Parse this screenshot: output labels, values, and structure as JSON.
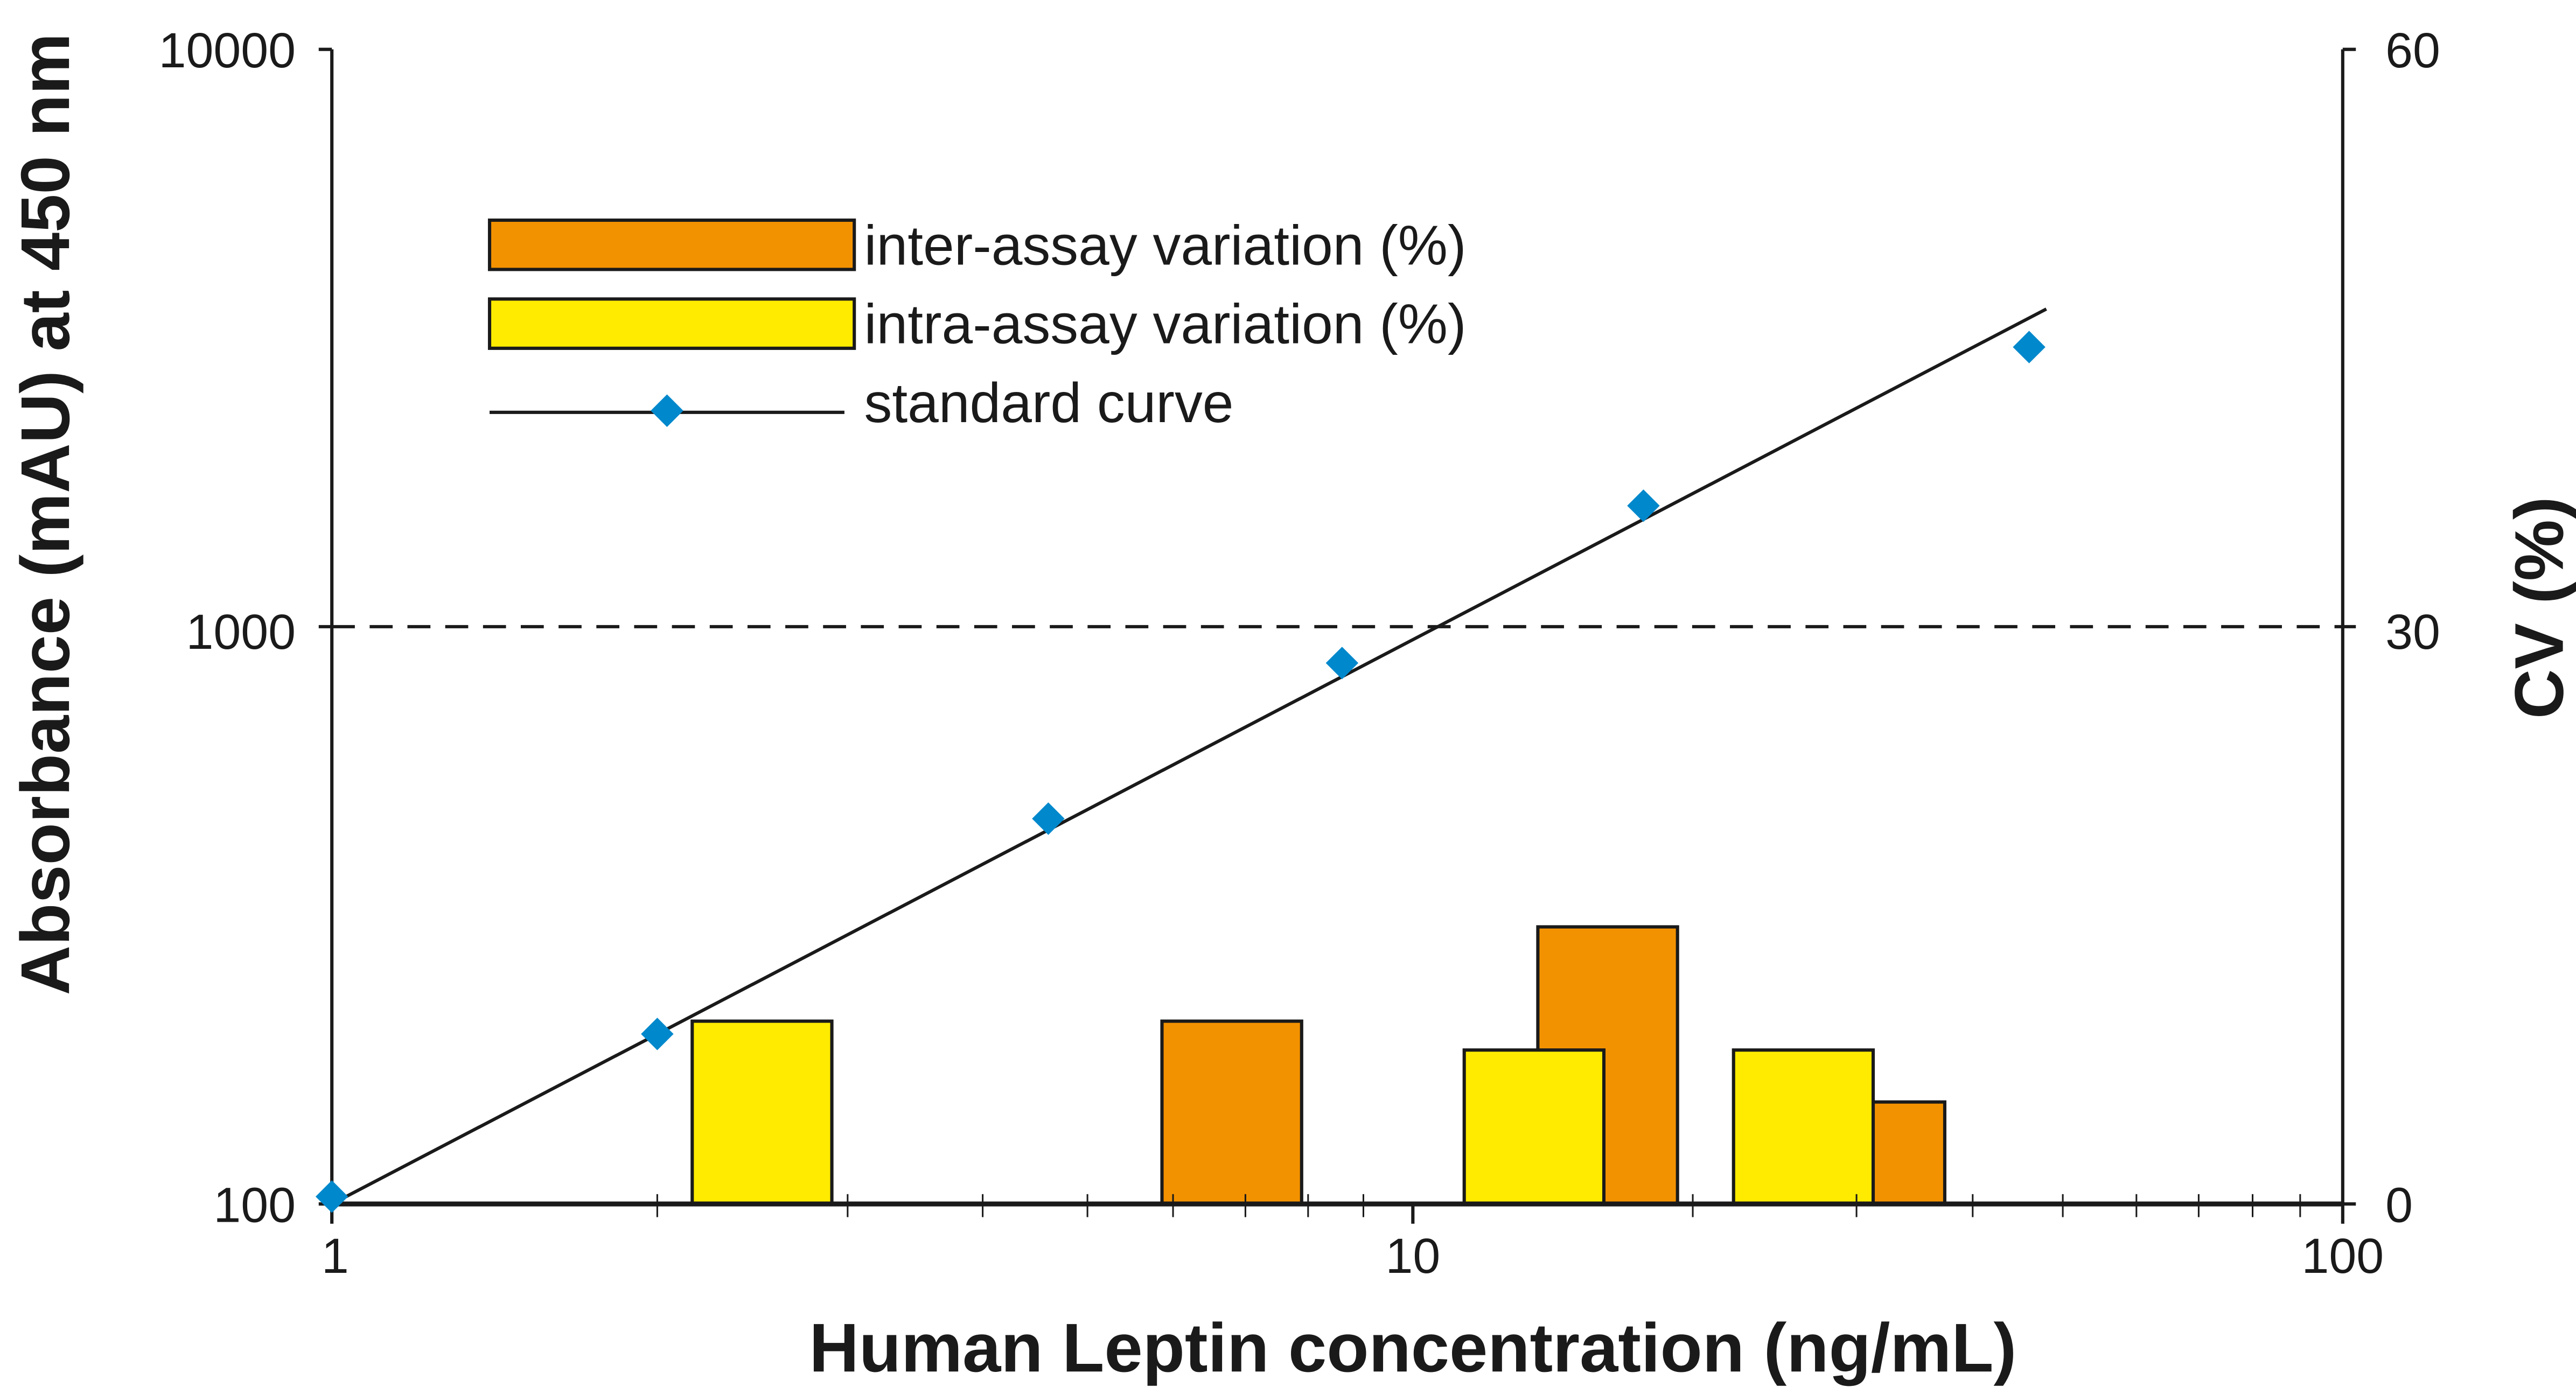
{
  "chart_data": {
    "type": "bar+line",
    "xlabel": "Human Leptin concentration (ng/mL)",
    "ylabel_left": "Absorbance (mAU) at 450 nm",
    "ylabel_right": "CV (%)",
    "x_scale": "log",
    "xlim": [
      1,
      100
    ],
    "x_ticks": [
      "1",
      "10",
      "100"
    ],
    "y_left_scale": "log",
    "y_left_lim": [
      100,
      10000
    ],
    "y_left_ticks": [
      "100",
      "1000",
      "10000"
    ],
    "y_right_lim": [
      0,
      60
    ],
    "y_right_ticks": [
      "0",
      "30",
      "60"
    ],
    "reference_line": {
      "cv": 30,
      "style": "dashed"
    },
    "legend_position": "top-left",
    "legend": {
      "inter": "inter-assay variation (%)",
      "intra": "intra-assay variation (%)",
      "curve": "standard curve"
    },
    "colors": {
      "inter": "#f39200",
      "intra": "#ffeb00",
      "curve_marker": "#0088cc",
      "line": "#1a1a1a"
    },
    "standard_curve_points": [
      {
        "x": 1.0,
        "y": 103
      },
      {
        "x": 2.0,
        "y": 197
      },
      {
        "x": 4.6,
        "y": 465
      },
      {
        "x": 8.6,
        "y": 865
      },
      {
        "x": 17.7,
        "y": 1620
      },
      {
        "x": 46,
        "y": 3050
      }
    ],
    "standard_curve_fit": {
      "from": {
        "x": 1,
        "y": 100
      },
      "to": {
        "x": 48,
        "y": 3550
      }
    },
    "inter_assay_cv": [
      {
        "x": 6.8,
        "cv": 9.5
      },
      {
        "x": 16.2,
        "cv": 14.4
      },
      {
        "x": 31.4,
        "cv": 5.3
      }
    ],
    "intra_assay_cv": [
      {
        "x": 2.5,
        "cv": 9.5
      },
      {
        "x": 13.5,
        "cv": 8.0
      },
      {
        "x": 26.3,
        "cv": 8.0
      }
    ]
  }
}
